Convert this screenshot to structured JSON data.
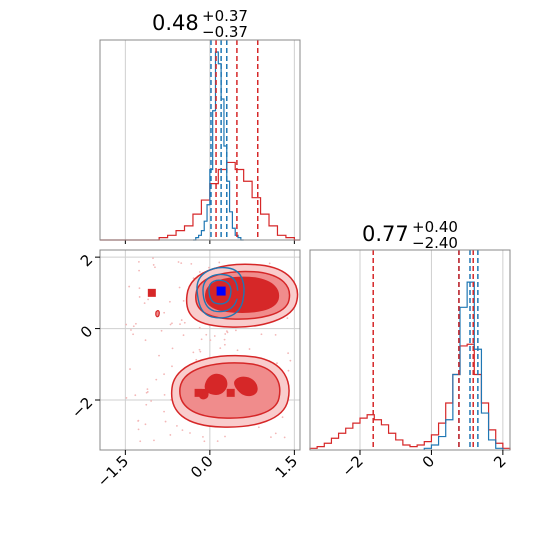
{
  "chart_data": {
    "type": "corner",
    "parameters": [
      {
        "title": {
          "median": "0.48",
          "plus": "+0.37",
          "minus": "−0.37"
        }
      },
      {
        "title": {
          "median": "0.77",
          "plus": "+0.40",
          "minus": "−2.40"
        }
      }
    ],
    "axes": {
      "x1": {
        "range": [
          -1.95,
          1.6
        ],
        "ticks": [
          -1.5,
          0.0,
          1.5
        ],
        "tick_labels": [
          "−1.5",
          "0.0",
          "1.5"
        ]
      },
      "y1": {
        "range": [
          -3.4,
          2.2
        ],
        "ticks": [
          2,
          0,
          -2
        ],
        "tick_labels": [
          "2",
          "0",
          "−2"
        ]
      },
      "x2": {
        "range": [
          -3.4,
          2.2
        ],
        "ticks": [
          -2,
          0,
          2
        ],
        "tick_labels": [
          "−2",
          "0",
          "2"
        ]
      }
    },
    "grid": true,
    "colors": {
      "red": "#d62728",
      "blue": "#1f77b4",
      "red_fill": "#f08c8c",
      "red_fill_light": "#f9cccc"
    },
    "hist1": {
      "red": {
        "bin_edges": [
          -1.95,
          -1.8,
          -1.65,
          -1.5,
          -1.35,
          -1.2,
          -1.05,
          -0.9,
          -0.75,
          -0.6,
          -0.45,
          -0.3,
          -0.15,
          0.0,
          0.15,
          0.3,
          0.45,
          0.6,
          0.75,
          0.9,
          1.05,
          1.2,
          1.35,
          1.5,
          1.6
        ],
        "counts": [
          0,
          0,
          0,
          0,
          0,
          0,
          0,
          0.01,
          0.02,
          0.04,
          0.06,
          0.11,
          0.17,
          0.24,
          0.3,
          0.33,
          0.3,
          0.25,
          0.18,
          0.11,
          0.06,
          0.02,
          0.01,
          0
        ]
      },
      "blue": {
        "bin_edges": [
          -0.3,
          -0.25,
          -0.2,
          -0.15,
          -0.1,
          -0.05,
          0.0,
          0.05,
          0.1,
          0.15,
          0.2,
          0.25,
          0.3,
          0.35,
          0.4,
          0.45,
          0.5,
          0.55,
          0.6
        ],
        "counts": [
          0,
          0.01,
          0.02,
          0.04,
          0.08,
          0.15,
          0.3,
          0.55,
          0.8,
          0.75,
          0.6,
          0.4,
          0.25,
          0.12,
          0.05,
          0.02,
          0.01,
          0
        ]
      },
      "quantiles_red": [
        0.11,
        0.48,
        0.85
      ],
      "quantiles_blue": [
        0.02,
        0.2,
        0.3
      ]
    },
    "hist2": {
      "red": {
        "bin_edges": [
          -3.4,
          -3.2,
          -3.0,
          -2.8,
          -2.6,
          -2.4,
          -2.2,
          -2.0,
          -1.8,
          -1.6,
          -1.4,
          -1.2,
          -1.0,
          -0.8,
          -0.6,
          -0.4,
          -0.2,
          0.0,
          0.2,
          0.4,
          0.6,
          0.8,
          1.0,
          1.2,
          1.4,
          1.6,
          1.8,
          2.0,
          2.2
        ],
        "counts": [
          0.01,
          0.02,
          0.04,
          0.07,
          0.1,
          0.13,
          0.16,
          0.19,
          0.21,
          0.18,
          0.15,
          0.1,
          0.06,
          0.03,
          0.02,
          0.03,
          0.05,
          0.09,
          0.16,
          0.28,
          0.45,
          0.62,
          0.63,
          0.45,
          0.28,
          0.12,
          0.04,
          0.01
        ]
      },
      "blue": {
        "bin_edges": [
          -0.2,
          0.0,
          0.2,
          0.4,
          0.6,
          0.8,
          1.0,
          1.2,
          1.4,
          1.6,
          1.8,
          2.0
        ],
        "counts": [
          0.01,
          0.03,
          0.08,
          0.18,
          0.45,
          0.85,
          1.0,
          0.6,
          0.22,
          0.06,
          0.01
        ]
      },
      "quantiles_red": [
        -1.63,
        0.77,
        1.17
      ],
      "quantiles_blue": [
        0.77,
        1.08,
        1.3
      ]
    },
    "scatter2d": {
      "red_markers": [
        [
          -1.03,
          1.0
        ],
        [
          -0.2,
          -1.8
        ],
        [
          0.37,
          -1.8
        ],
        [
          0.5,
          0.95
        ]
      ],
      "blue_marker": [
        0.2,
        1.05
      ]
    }
  }
}
